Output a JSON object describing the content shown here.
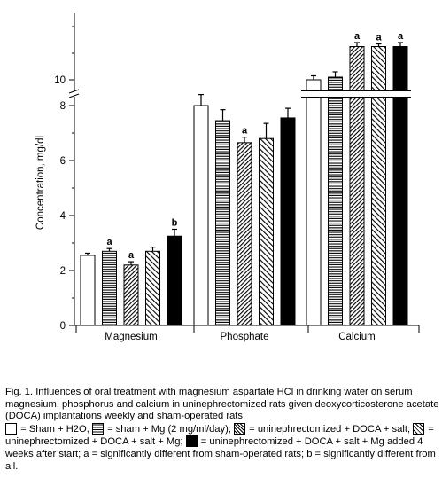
{
  "chart_data": {
    "type": "bar",
    "ylabel": "Concentration, mg/dl",
    "xlabel": "",
    "y_ticks": [
      "0",
      "2",
      "4",
      "6",
      "8",
      "10"
    ],
    "y_axis_break": "between 8 and 10",
    "categories": [
      "Magnesium",
      "Phosphate",
      "Calcium"
    ],
    "series": [
      {
        "key": "sham_h2o",
        "pattern": "open",
        "values": [
          2.55,
          8.0,
          10.0
        ],
        "errors": [
          0.08,
          0.4,
          0.15
        ],
        "annotations": [
          "",
          "",
          ""
        ]
      },
      {
        "key": "sham_mg",
        "pattern": "horizontal-stripes",
        "values": [
          2.7,
          7.45,
          10.1
        ],
        "errors": [
          0.1,
          0.4,
          0.2
        ],
        "annotations": [
          "a",
          "",
          ""
        ]
      },
      {
        "key": "unx_doca_salt",
        "pattern": "diagonal-dense",
        "values": [
          2.2,
          6.65,
          11.25
        ],
        "errors": [
          0.12,
          0.2,
          0.15
        ],
        "annotations": [
          "a",
          "a",
          "a"
        ]
      },
      {
        "key": "unx_doca_salt_mg",
        "pattern": "diagonal-sparse",
        "values": [
          2.7,
          6.8,
          11.25
        ],
        "errors": [
          0.15,
          0.55,
          0.1
        ],
        "annotations": [
          "",
          "",
          "a"
        ]
      },
      {
        "key": "unx_doca_salt_mg_late",
        "pattern": "solid",
        "values": [
          3.25,
          7.55,
          11.25
        ],
        "errors": [
          0.25,
          0.35,
          0.15
        ],
        "annotations": [
          "b",
          "",
          "a"
        ]
      }
    ],
    "colors": {
      "bar_stroke": "#000000",
      "solid_fill": "#000000",
      "background": "#ffffff"
    }
  },
  "caption": {
    "line1": "Fig. 1.  Influences of oral treatment with magnesium aspartate HCl in drinking water on serum magnesium, phosphorus and calcium in uninephrectomized rats given deoxycorticosterone acetate (DOCA) implantations weekly and sham-operated rats.",
    "legend1": "= Sham + H2O,",
    "legend2": "= sham + Mg (2 mg/ml/day);",
    "legend3": "= uninephrectomized + DOCA + salt;",
    "legend4": "= uninephrectomized + DOCA + salt + Mg;",
    "legend5": "= uninephrectomized + DOCA + salt + Mg added 4 weeks after start;  a = significantly different from sham-operated rats;  b = significantly different from all."
  }
}
